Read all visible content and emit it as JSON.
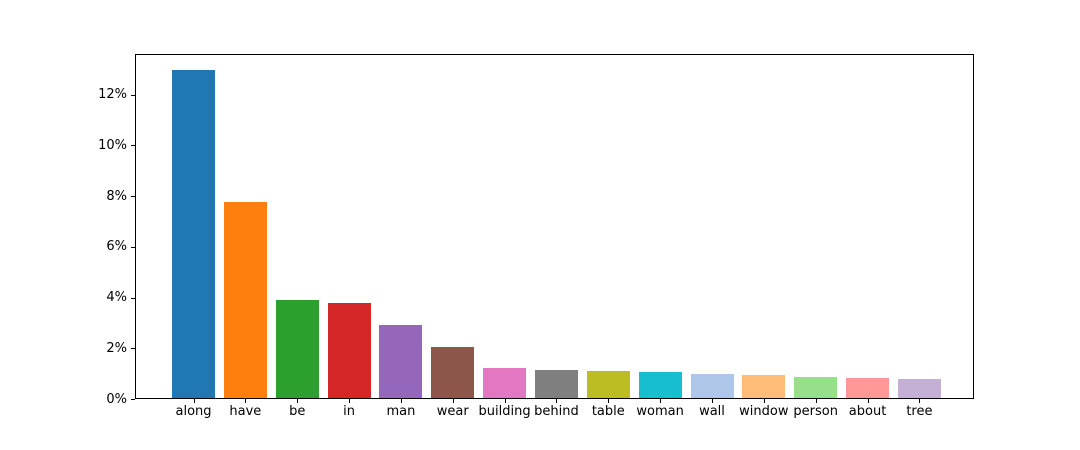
{
  "chart_data": {
    "type": "bar",
    "title": "",
    "xlabel": "",
    "ylabel": "",
    "categories": [
      "along",
      "have",
      "be",
      "in",
      "man",
      "wear",
      "building",
      "behind",
      "table",
      "woman",
      "wall",
      "window",
      "person",
      "about",
      "tree"
    ],
    "values": [
      12.92,
      7.72,
      3.85,
      3.74,
      2.87,
      2.02,
      1.19,
      1.11,
      1.07,
      1.02,
      0.95,
      0.89,
      0.83,
      0.8,
      0.77
    ],
    "value_format": "percent",
    "bar_colors": [
      "#1f77b4",
      "#ff7f0e",
      "#2ca02c",
      "#d62728",
      "#9467bd",
      "#8c564b",
      "#e377c2",
      "#7f7f7f",
      "#bcbd22",
      "#17becf",
      "#aec7e8",
      "#ffbb78",
      "#98df8a",
      "#ff9896",
      "#c5b0d5"
    ],
    "ytick_values": [
      0,
      2,
      4,
      6,
      8,
      10,
      12
    ],
    "ytick_labels": [
      "0%",
      "2%",
      "4%",
      "6%",
      "8%",
      "10%",
      "12%"
    ],
    "ylim": [
      0,
      13.56
    ],
    "grid": false,
    "legend_position": "none",
    "axis_color": "#000000",
    "background_color": "#ffffff"
  }
}
